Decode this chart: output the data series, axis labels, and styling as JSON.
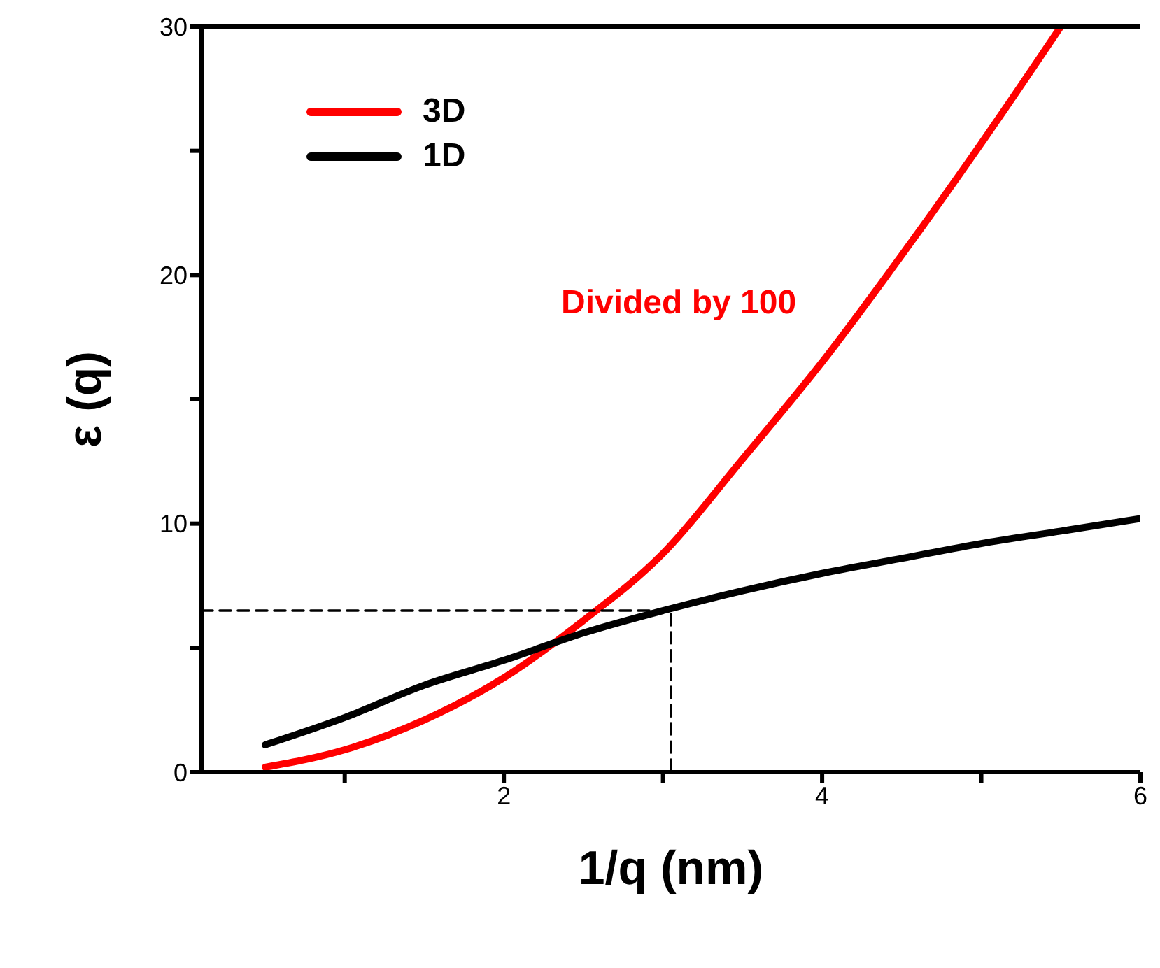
{
  "chart_data": {
    "type": "line",
    "xlabel": "1/q (nm)",
    "ylabel": "ε (q)",
    "xlim": [
      0.1,
      6
    ],
    "xticks": [
      {
        "value": 1,
        "label": null
      },
      2,
      {
        "value": 3,
        "label": null
      },
      4,
      {
        "value": 5,
        "label": null
      },
      6
    ],
    "ylim": [
      0,
      30
    ],
    "yticks": [
      0,
      {
        "value": 5,
        "label": null
      },
      10,
      {
        "value": 15,
        "label": null
      },
      20,
      {
        "value": 25,
        "label": null
      },
      30
    ],
    "legend": "top left",
    "grid": false,
    "series": [
      {
        "name": "3D",
        "color": "#ff0000",
        "x": [
          0.5,
          1,
          1.5,
          2,
          2.5,
          3,
          3.5,
          4,
          4.5,
          5,
          5.5
        ],
        "values": [
          0.2,
          0.9,
          2.1,
          3.8,
          6.1,
          8.8,
          12.6,
          16.5,
          20.8,
          25.3,
          30
        ]
      },
      {
        "name": "1D",
        "color": "#000000",
        "x": [
          0.5,
          1,
          1.5,
          2,
          2.5,
          3,
          3.5,
          4,
          4.5,
          5,
          5.5,
          6
        ],
        "values": [
          1.1,
          2.2,
          3.5,
          4.5,
          5.6,
          6.5,
          7.3,
          8.0,
          8.6,
          9.2,
          9.7,
          10.2
        ]
      },
      {
        "color": "#000000",
        "line_style": "dashed",
        "x": [
          0.1,
          3.05,
          3.05
        ],
        "values": [
          6.5,
          6.5,
          0
        ]
      }
    ],
    "annotations": [
      "Divided by 100"
    ]
  }
}
